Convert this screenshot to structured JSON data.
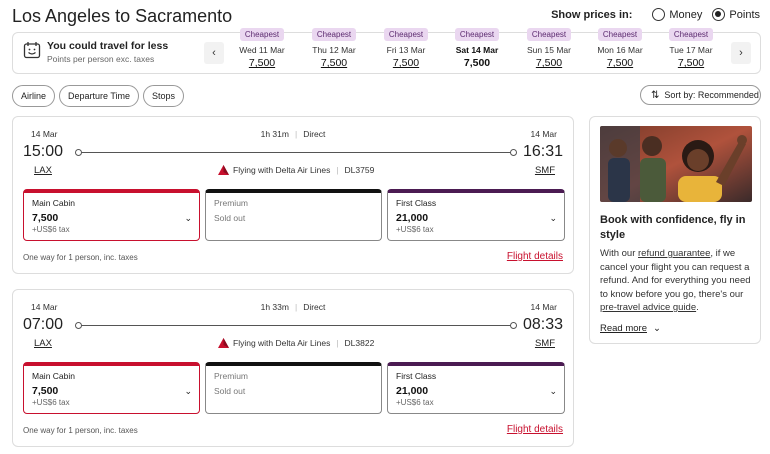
{
  "header": {
    "title": "Los Angeles to Sacramento",
    "price_label": "Show prices in:",
    "money_label": "Money",
    "points_label": "Points",
    "selected": "points"
  },
  "date_strip": {
    "headline": "You could travel for less",
    "subline": "Points per person exc. taxes",
    "prev_icon": "chevron-left-icon",
    "next_icon": "chevron-right-icon",
    "dates": [
      {
        "badge": "Cheapest",
        "date": "Wed 11 Mar",
        "price": "7,500",
        "selected": false
      },
      {
        "badge": "Cheapest",
        "date": "Thu 12 Mar",
        "price": "7,500",
        "selected": false
      },
      {
        "badge": "Cheapest",
        "date": "Fri 13 Mar",
        "price": "7,500",
        "selected": false
      },
      {
        "badge": "Cheapest",
        "date": "Sat 14 Mar",
        "price": "7,500",
        "selected": true
      },
      {
        "badge": "Cheapest",
        "date": "Sun 15 Mar",
        "price": "7,500",
        "selected": false
      },
      {
        "badge": "Cheapest",
        "date": "Mon 16 Mar",
        "price": "7,500",
        "selected": false
      },
      {
        "badge": "Cheapest",
        "date": "Tue 17 Mar",
        "price": "7,500",
        "selected": false
      }
    ]
  },
  "filters": {
    "airline": "Airline",
    "departure_time": "Departure Time",
    "stops": "Stops",
    "sort": "Sort by: Recommended"
  },
  "flights": [
    {
      "dep_date": "14 Mar",
      "arr_date": "14 Mar",
      "dep_time": "15:00",
      "arr_time": "16:31",
      "dep_code": "LAX",
      "arr_code": "SMF",
      "duration": "1h 31m",
      "stops": "Direct",
      "airline": "Flying with Delta Air Lines",
      "flight_no": "DL3759",
      "main": {
        "name": "Main Cabin",
        "price": "7,500",
        "tax": "+US$6 tax"
      },
      "premium": {
        "name": "Premium",
        "status": "Sold out"
      },
      "first": {
        "name": "First Class",
        "price": "21,000",
        "tax": "+US$6 tax"
      },
      "note": "One way for 1 person, inc. taxes",
      "details": "Flight details"
    },
    {
      "dep_date": "14 Mar",
      "arr_date": "14 Mar",
      "dep_time": "07:00",
      "arr_time": "08:33",
      "dep_code": "LAX",
      "arr_code": "SMF",
      "duration": "1h 33m",
      "stops": "Direct",
      "airline": "Flying with Delta Air Lines",
      "flight_no": "DL3822",
      "main": {
        "name": "Main Cabin",
        "price": "7,500",
        "tax": "+US$6 tax"
      },
      "premium": {
        "name": "Premium",
        "status": "Sold out"
      },
      "first": {
        "name": "First Class",
        "price": "21,000",
        "tax": "+US$6 tax"
      },
      "note": "One way for 1 person, inc. taxes",
      "details": "Flight details"
    }
  ],
  "promo": {
    "title": "Book with confidence, fly in style",
    "body_1": "With our ",
    "link_1": "refund guarantee",
    "body_2": ", if we cancel your flight you can request a refund. And for everything you need to know before you go, there's our ",
    "link_2": "pre-travel advice guide",
    "body_3": ".",
    "read_more": "Read more"
  },
  "colors": {
    "accent_red": "#c8102e",
    "badge_bg": "#ead7f0",
    "first_class": "#4b1b52"
  }
}
